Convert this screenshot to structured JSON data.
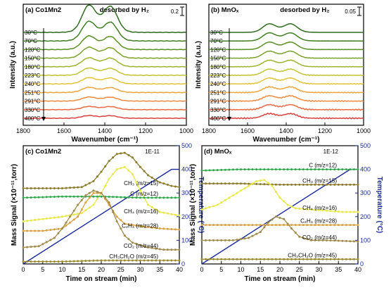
{
  "chart_data": [
    {
      "panel": "(a)",
      "sample": "Co1Mn2",
      "annotation": "desorbed by H₂",
      "type": "line",
      "xlabel": "Wavenumber (cm⁻¹)",
      "ylabel": "Intensity (a.u.)",
      "xlim": [
        1800,
        1000
      ],
      "xticks": [
        1800,
        1600,
        1400,
        1200,
        1000
      ],
      "scale_bar": "0.2",
      "series": [
        {
          "name": "30°C",
          "color": "#2e6b1e",
          "amp": 1.0
        },
        {
          "name": "70°C",
          "color": "#3f7d22",
          "amp": 0.72
        },
        {
          "name": "120°C",
          "color": "#5a8f25",
          "amp": 0.5
        },
        {
          "name": "150°C",
          "color": "#7aa22a",
          "amp": 0.4
        },
        {
          "name": "180°C",
          "color": "#9db32e",
          "amp": 0.33
        },
        {
          "name": "223°C",
          "color": "#c4c433",
          "amp": 0.27
        },
        {
          "name": "240°C",
          "color": "#e3c237",
          "amp": 0.23
        },
        {
          "name": "251°C",
          "color": "#efa53c",
          "amp": 0.19
        },
        {
          "name": "291°C",
          "color": "#ee8a3f",
          "amp": 0.15
        },
        {
          "name": "330°C",
          "color": "#e96a41",
          "amp": 0.12
        },
        {
          "name": "400°C",
          "color": "#d8413f",
          "amp": 0.1
        }
      ],
      "peaks": [
        1480,
        1370
      ]
    },
    {
      "panel": "(b)",
      "sample": "MnOₓ",
      "annotation": "desorbed by H₂",
      "type": "line",
      "xlabel": "Wavenumber (cm⁻¹)",
      "ylabel": "Intensity (a.u.)",
      "xlim": [
        1800,
        1000
      ],
      "xticks": [
        1800,
        1600,
        1400,
        1200,
        1000
      ],
      "scale_bar": "0.05",
      "series": [
        {
          "name": "30°C",
          "color": "#2e6b1e",
          "amp": 0.55
        },
        {
          "name": "70°C",
          "color": "#3f7d22",
          "amp": 0.52
        },
        {
          "name": "120°C",
          "color": "#5a8f25",
          "amp": 0.48
        },
        {
          "name": "150°C",
          "color": "#7aa22a",
          "amp": 0.45
        },
        {
          "name": "180°C",
          "color": "#9db32e",
          "amp": 0.42
        },
        {
          "name": "223°C",
          "color": "#c4c433",
          "amp": 0.4
        },
        {
          "name": "240°C",
          "color": "#e3c237",
          "amp": 0.38
        },
        {
          "name": "251°C",
          "color": "#efa53c",
          "amp": 0.36
        },
        {
          "name": "291°C",
          "color": "#ee8a3f",
          "amp": 0.34
        },
        {
          "name": "330°C",
          "color": "#e96a41",
          "amp": 0.32
        },
        {
          "name": "400°C",
          "color": "#d8413f",
          "amp": 0.3
        }
      ],
      "peaks": [
        1490,
        1375
      ]
    },
    {
      "panel": "(c)",
      "sample": "Co1Mn2",
      "type": "line",
      "xlabel": "Time on stream (min)",
      "ylabel": "Mass Signal (×10⁻¹¹,torr)",
      "y2label": "Temperature (°C)",
      "xlim": [
        0,
        40
      ],
      "xticks": [
        0,
        5,
        10,
        15,
        20,
        25,
        30,
        35,
        40
      ],
      "y2lim": [
        0,
        500
      ],
      "y2ticks": [
        0,
        100,
        200,
        300,
        400,
        500
      ],
      "scale_bar": "1E-11",
      "temperature": {
        "x": [
          0,
          38,
          40
        ],
        "y": [
          0,
          400,
          400
        ],
        "color": "#1a2a9c"
      },
      "series": [
        {
          "name": "CH₃ (m/z=15)",
          "color": "#8a7a2a",
          "x": [
            0,
            5,
            10,
            15,
            18,
            20,
            22,
            24,
            26,
            28,
            30,
            32,
            35,
            38,
            40
          ],
          "y": [
            0.64,
            0.64,
            0.64,
            0.65,
            0.7,
            0.78,
            0.87,
            0.93,
            0.94,
            0.9,
            0.82,
            0.75,
            0.69,
            0.66,
            0.65
          ]
        },
        {
          "name": "CH₄ (m/z=16)",
          "color": "#e8e84a",
          "x": [
            0,
            5,
            10,
            15,
            18,
            20,
            22,
            24,
            26,
            28,
            30,
            32,
            35,
            38,
            40
          ],
          "y": [
            0.36,
            0.38,
            0.4,
            0.43,
            0.5,
            0.6,
            0.72,
            0.8,
            0.82,
            0.76,
            0.62,
            0.5,
            0.44,
            0.42,
            0.41
          ]
        },
        {
          "name": "C (m/z=12)",
          "color": "#2ea84a",
          "x": [
            0,
            10,
            20,
            30,
            40
          ],
          "y": [
            0.56,
            0.57,
            0.57,
            0.56,
            0.56
          ]
        },
        {
          "name": "C₂H₄ (m/z=28)",
          "color": "#d8a040",
          "x": [
            0,
            5,
            10,
            14,
            16,
            18,
            20,
            22,
            24,
            26,
            30,
            35,
            40
          ],
          "y": [
            0.28,
            0.28,
            0.3,
            0.4,
            0.52,
            0.6,
            0.6,
            0.5,
            0.4,
            0.34,
            0.32,
            0.3,
            0.29
          ]
        },
        {
          "name": "CO₂ (m/z=44)",
          "color": "#a08a4a",
          "x": [
            0,
            4,
            8,
            10,
            12,
            14,
            16,
            18,
            20,
            22,
            24,
            26,
            28,
            32,
            36,
            40
          ],
          "y": [
            0.14,
            0.15,
            0.22,
            0.3,
            0.4,
            0.5,
            0.58,
            0.62,
            0.6,
            0.52,
            0.36,
            0.24,
            0.18,
            0.14,
            0.12,
            0.12
          ]
        },
        {
          "name": "CH₃CH₂O (m/z=45)",
          "color": "#9a8a30",
          "x": [
            0,
            10,
            20,
            30,
            40
          ],
          "y": [
            0.02,
            0.02,
            0.03,
            0.03,
            0.03
          ]
        }
      ]
    },
    {
      "panel": "(d)",
      "sample": "MnOₓ",
      "type": "line",
      "xlabel": "Time on stream (min)",
      "ylabel": "Mass Signal (×10⁻¹¹,torr)",
      "y2label": "Temperature (°C)",
      "xlim": [
        0,
        40
      ],
      "xticks": [
        0,
        5,
        10,
        15,
        20,
        25,
        30,
        35,
        40
      ],
      "y2lim": [
        0,
        500
      ],
      "y2ticks": [
        0,
        100,
        200,
        300,
        400,
        500
      ],
      "scale_bar": "1E-12",
      "temperature": {
        "x": [
          0,
          38,
          40
        ],
        "y": [
          0,
          400,
          400
        ],
        "color": "#1a2a9c"
      },
      "series": [
        {
          "name": "C (m/z=12)",
          "color": "#2ea84a",
          "x": [
            0,
            10,
            20,
            30,
            40
          ],
          "y": [
            0.79,
            0.8,
            0.8,
            0.8,
            0.8
          ]
        },
        {
          "name": "CH₃ (m/z=15)",
          "color": "#8a7a2a",
          "x": [
            0,
            10,
            20,
            30,
            40
          ],
          "y": [
            0.68,
            0.68,
            0.67,
            0.67,
            0.67
          ]
        },
        {
          "name": "CH₄ (m/z=16)",
          "color": "#e8e84a",
          "x": [
            0,
            4,
            8,
            11,
            14,
            16,
            18,
            20,
            22,
            24,
            28,
            32,
            36,
            40
          ],
          "y": [
            0.46,
            0.5,
            0.58,
            0.64,
            0.7,
            0.71,
            0.66,
            0.56,
            0.5,
            0.47,
            0.46,
            0.45,
            0.44,
            0.44
          ]
        },
        {
          "name": "C₂H₄ (m/z=28)",
          "color": "#d8a040",
          "x": [
            0,
            10,
            20,
            30,
            40
          ],
          "y": [
            0.33,
            0.33,
            0.33,
            0.33,
            0.33
          ]
        },
        {
          "name": "CO₂ (m/z=44)",
          "color": "#a08a4a",
          "x": [
            0,
            8,
            12,
            15,
            17,
            19,
            21,
            23,
            25,
            28,
            32,
            40
          ],
          "y": [
            0.2,
            0.2,
            0.22,
            0.27,
            0.35,
            0.4,
            0.38,
            0.3,
            0.23,
            0.2,
            0.2,
            0.19
          ]
        },
        {
          "name": "CH₃CH₂O (m/z=45)",
          "color": "#9a8a30",
          "x": [
            0,
            10,
            20,
            30,
            40
          ],
          "y": [
            0.04,
            0.04,
            0.04,
            0.04,
            0.04
          ]
        }
      ]
    }
  ]
}
